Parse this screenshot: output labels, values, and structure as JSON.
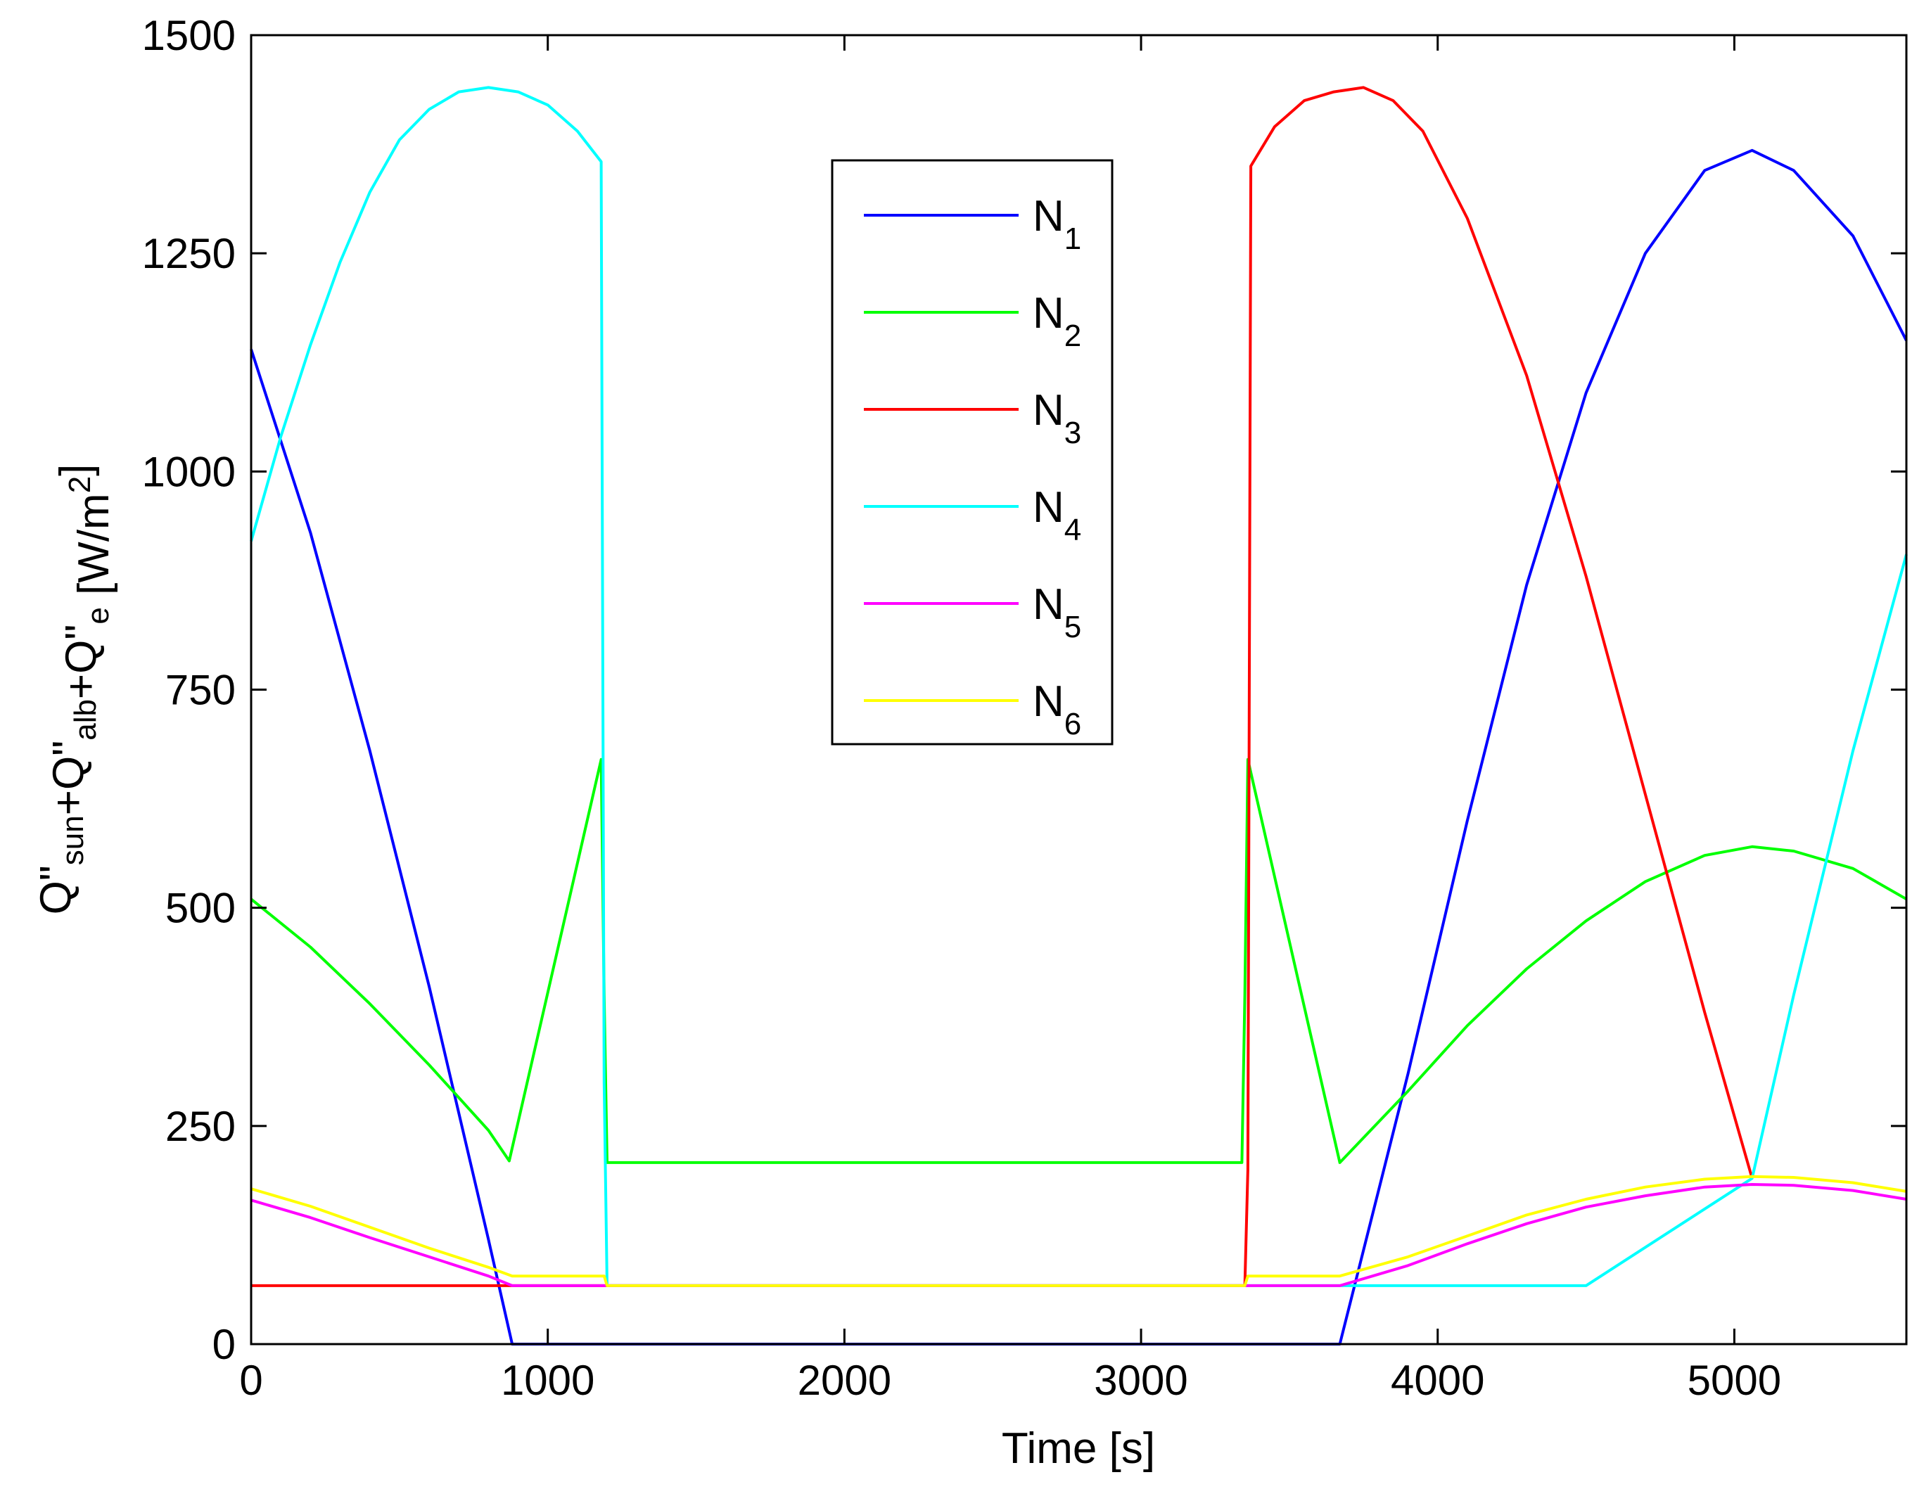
{
  "chart_data": {
    "type": "line",
    "title": "",
    "xlabel": "Time [s]",
    "ylabel_parts": [
      {
        "text": "Q\"",
        "sub": "sun"
      },
      {
        "text": "+Q\"",
        "sub": "alb"
      },
      {
        "text": "+Q\"",
        "sub": "e"
      },
      {
        "text": "  [W/m",
        "sup": "2"
      },
      {
        "text": "]"
      }
    ],
    "xlim": [
      0,
      5580
    ],
    "ylim": [
      0,
      1500
    ],
    "xticks": [
      0,
      1000,
      2000,
      3000,
      4000,
      5000
    ],
    "yticks": [
      0,
      250,
      500,
      750,
      1000,
      1250,
      1500
    ],
    "xtick_labels": [
      "0",
      "1000",
      "2000",
      "3000",
      "4000",
      "5000"
    ],
    "ytick_labels": [
      "0",
      "250",
      "500",
      "750",
      "1000",
      "1250",
      "1500"
    ],
    "grid": false,
    "legend_position": "top-center",
    "series": [
      {
        "name": "N",
        "sub": "1",
        "color": "#0000ff",
        "x": [
          0,
          200,
          400,
          600,
          800,
          880,
          1200,
          2000,
          3000,
          3350,
          3670,
          3900,
          4100,
          4300,
          4500,
          4700,
          4900,
          5060,
          5200,
          5400,
          5580
        ],
        "y": [
          1140,
          930,
          680,
          410,
          120,
          0,
          0,
          0,
          0,
          0,
          0,
          310,
          600,
          870,
          1090,
          1250,
          1345,
          1368,
          1345,
          1270,
          1150
        ]
      },
      {
        "name": "N",
        "sub": "2",
        "color": "#00ff00",
        "x": [
          0,
          200,
          400,
          600,
          800,
          870,
          1180,
          1190,
          1200,
          2000,
          3000,
          3340,
          3350,
          3360,
          3670,
          3900,
          4100,
          4300,
          4500,
          4700,
          4900,
          5060,
          5200,
          5400,
          5580
        ],
        "y": [
          510,
          455,
          390,
          320,
          245,
          210,
          670,
          400,
          208,
          208,
          208,
          208,
          400,
          670,
          208,
          290,
          365,
          430,
          485,
          530,
          560,
          570,
          565,
          545,
          510
        ]
      },
      {
        "name": "N",
        "sub": "3",
        "color": "#ff0000",
        "x": [
          0,
          1200,
          2000,
          3000,
          3350,
          3360,
          3370,
          3450,
          3550,
          3650,
          3750,
          3850,
          3950,
          4100,
          4300,
          4500,
          4700,
          4900,
          5060
        ],
        "y": [
          67,
          67,
          67,
          67,
          67,
          200,
          1350,
          1395,
          1425,
          1435,
          1440,
          1425,
          1390,
          1290,
          1110,
          880,
          630,
          380,
          190
        ]
      },
      {
        "name": "N",
        "sub": "4",
        "color": "#00ffff",
        "x": [
          0,
          100,
          200,
          300,
          400,
          500,
          600,
          700,
          800,
          900,
          1000,
          1100,
          1180,
          1190,
          1200,
          2000,
          3000,
          3350,
          3670,
          4000,
          4500,
          5060,
          5200,
          5400,
          5580
        ],
        "y": [
          920,
          1040,
          1145,
          1240,
          1320,
          1380,
          1415,
          1435,
          1440,
          1435,
          1420,
          1390,
          1355,
          300,
          67,
          67,
          67,
          67,
          67,
          67,
          67,
          190,
          400,
          680,
          905
        ]
      },
      {
        "name": "N",
        "sub": "5",
        "color": "#ff00ff",
        "x": [
          0,
          200,
          400,
          600,
          800,
          880,
          1200,
          2000,
          3000,
          3350,
          3670,
          3900,
          4100,
          4300,
          4500,
          4700,
          4900,
          5060,
          5200,
          5400,
          5580
        ],
        "y": [
          165,
          145,
          122,
          100,
          78,
          67,
          67,
          67,
          67,
          67,
          67,
          90,
          115,
          138,
          157,
          170,
          180,
          183,
          182,
          176,
          166
        ]
      },
      {
        "name": "N",
        "sub": "6",
        "color": "#ffff00",
        "x": [
          0,
          200,
          400,
          600,
          800,
          880,
          1190,
          1200,
          2000,
          3000,
          3350,
          3360,
          3670,
          3900,
          4100,
          4300,
          4500,
          4700,
          4900,
          5060,
          5200,
          5400,
          5580
        ],
        "y": [
          178,
          158,
          134,
          110,
          88,
          78,
          78,
          67,
          67,
          67,
          67,
          78,
          78,
          100,
          124,
          148,
          166,
          180,
          189,
          192,
          191,
          185,
          175
        ]
      }
    ]
  }
}
